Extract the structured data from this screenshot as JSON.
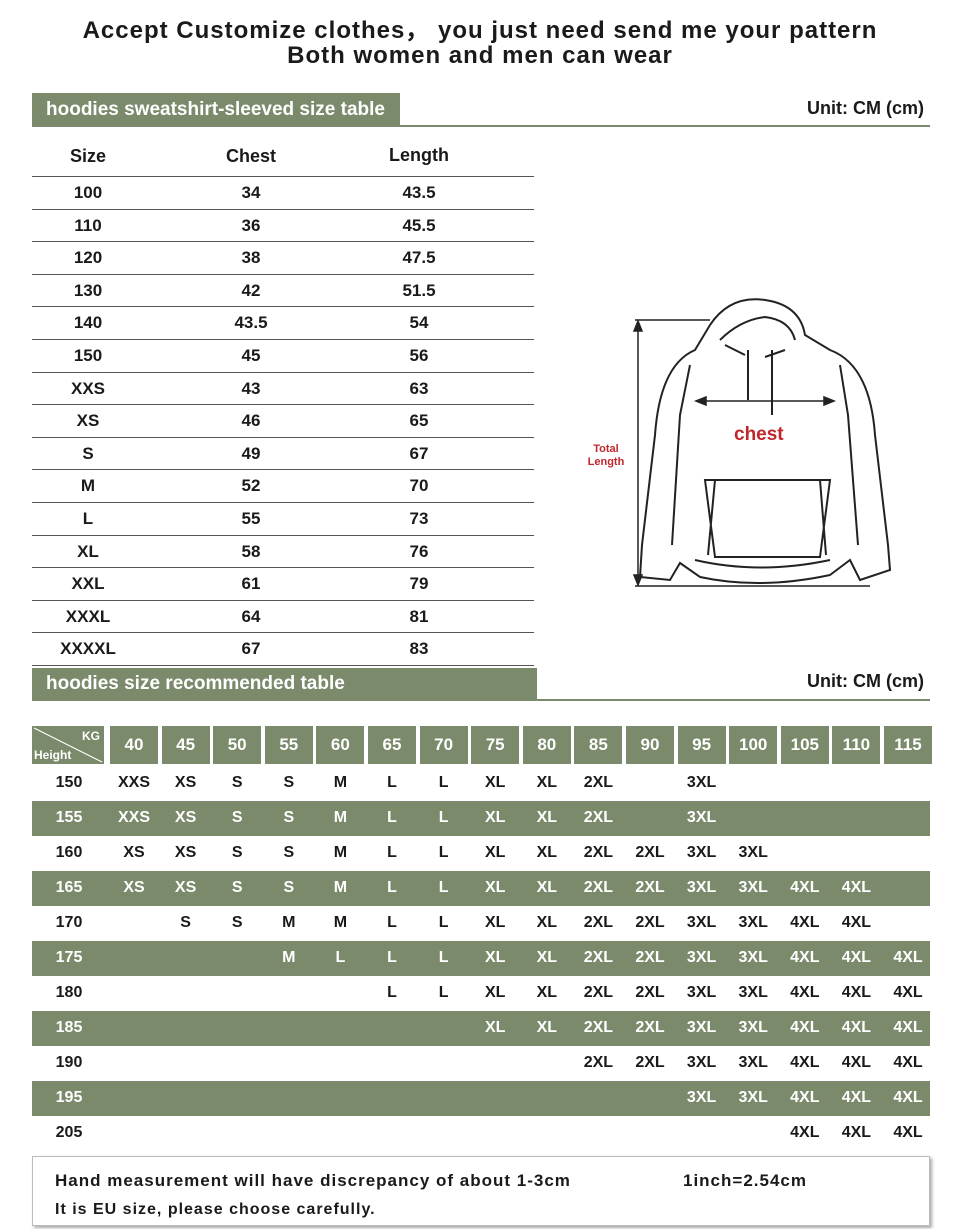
{
  "header": {
    "line1": "Accept Customize clothes， you just need send me your pattern",
    "line2": "Both women and men can wear"
  },
  "size_table": {
    "title": "hoodies sweatshirt-sleeved size table",
    "unit": "Unit: CM (cm)",
    "columns": [
      "Size",
      "Chest",
      "Length"
    ],
    "rows": [
      [
        "100",
        "34",
        "43.5"
      ],
      [
        "110",
        "36",
        "45.5"
      ],
      [
        "120",
        "38",
        "47.5"
      ],
      [
        "130",
        "42",
        "51.5"
      ],
      [
        "140",
        "43.5",
        "54"
      ],
      [
        "150",
        "45",
        "56"
      ],
      [
        "XXS",
        "43",
        "63"
      ],
      [
        "XS",
        "46",
        "65"
      ],
      [
        "S",
        "49",
        "67"
      ],
      [
        "M",
        "52",
        "70"
      ],
      [
        "L",
        "55",
        "73"
      ],
      [
        "XL",
        "58",
        "76"
      ],
      [
        "XXL",
        "61",
        "79"
      ],
      [
        "XXXL",
        "64",
        "81"
      ],
      [
        "XXXXL",
        "67",
        "83"
      ]
    ]
  },
  "diagram": {
    "chest_label": "chest",
    "length_label": "Total Length",
    "chest_color": "#c0272d"
  },
  "recommend_table": {
    "title": "hoodies size recommended table",
    "unit": "Unit: CM (cm)",
    "corner_kg": "KG",
    "corner_height": "Height",
    "weights": [
      "40",
      "45",
      "50",
      "55",
      "60",
      "65",
      "70",
      "75",
      "80",
      "85",
      "90",
      "95",
      "100",
      "105",
      "110",
      "115"
    ],
    "rows": [
      {
        "height": "150",
        "sizes": [
          "XXS",
          "XS",
          "S",
          "S",
          "M",
          "L",
          "L",
          "XL",
          "XL",
          "2XL",
          "",
          "3XL",
          "",
          "",
          "",
          ""
        ]
      },
      {
        "height": "155",
        "sizes": [
          "XXS",
          "XS",
          "S",
          "S",
          "M",
          "L",
          "L",
          "XL",
          "XL",
          "2XL",
          "",
          "3XL",
          "",
          "",
          "",
          ""
        ]
      },
      {
        "height": "160",
        "sizes": [
          "XS",
          "XS",
          "S",
          "S",
          "M",
          "L",
          "L",
          "XL",
          "XL",
          "2XL",
          "2XL",
          "3XL",
          "3XL",
          "",
          "",
          ""
        ]
      },
      {
        "height": "165",
        "sizes": [
          "XS",
          "XS",
          "S",
          "S",
          "M",
          "L",
          "L",
          "XL",
          "XL",
          "2XL",
          "2XL",
          "3XL",
          "3XL",
          "4XL",
          "4XL",
          ""
        ]
      },
      {
        "height": "170",
        "sizes": [
          "",
          "S",
          "S",
          "M",
          "M",
          "L",
          "L",
          "XL",
          "XL",
          "2XL",
          "2XL",
          "3XL",
          "3XL",
          "4XL",
          "4XL",
          ""
        ]
      },
      {
        "height": "175",
        "sizes": [
          "",
          "",
          "",
          "M",
          "L",
          "L",
          "L",
          "XL",
          "XL",
          "2XL",
          "2XL",
          "3XL",
          "3XL",
          "4XL",
          "4XL",
          "4XL"
        ]
      },
      {
        "height": "180",
        "sizes": [
          "",
          "",
          "",
          "",
          "",
          "L",
          "L",
          "XL",
          "XL",
          "2XL",
          "2XL",
          "3XL",
          "3XL",
          "4XL",
          "4XL",
          "4XL"
        ]
      },
      {
        "height": "185",
        "sizes": [
          "",
          "",
          "",
          "",
          "",
          "",
          "",
          "XL",
          "XL",
          "2XL",
          "2XL",
          "3XL",
          "3XL",
          "4XL",
          "4XL",
          "4XL"
        ]
      },
      {
        "height": "190",
        "sizes": [
          "",
          "",
          "",
          "",
          "",
          "",
          "",
          "",
          "",
          "2XL",
          "2XL",
          "3XL",
          "3XL",
          "4XL",
          "4XL",
          "4XL"
        ]
      },
      {
        "height": "195",
        "sizes": [
          "",
          "",
          "",
          "",
          "",
          "",
          "",
          "",
          "",
          "",
          "",
          "3XL",
          "3XL",
          "4XL",
          "4XL",
          "4XL"
        ]
      },
      {
        "height": "205",
        "sizes": [
          "",
          "",
          "",
          "",
          "",
          "",
          "",
          "",
          "",
          "",
          "",
          "",
          "",
          "4XL",
          "4XL",
          "4XL"
        ]
      }
    ]
  },
  "note": {
    "line1": "Hand measurement will have discrepancy of about 1-3cm",
    "conversion": "1inch=2.54cm",
    "line2": "It is EU size, please choose carefully."
  },
  "colors": {
    "accent": "#7b8a6b"
  }
}
